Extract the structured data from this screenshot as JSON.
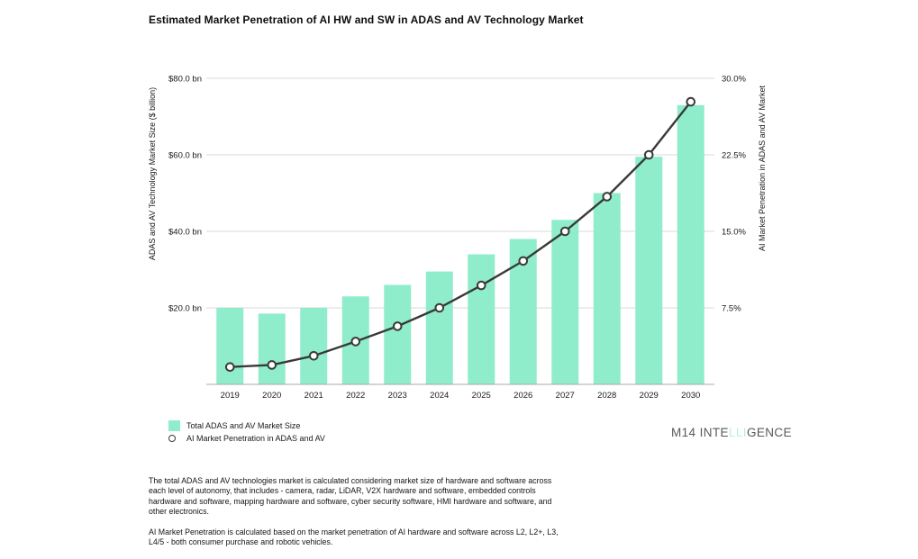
{
  "title": "Estimated Market Penetration of AI HW and SW in ADAS and AV Technology Market",
  "chart_data": {
    "type": "bar+line",
    "title": "Estimated Market Penetration of AI HW and SW in ADAS and AV Technology Market",
    "categories": [
      "2019",
      "2020",
      "2021",
      "2022",
      "2023",
      "2024",
      "2025",
      "2026",
      "2027",
      "2028",
      "2029",
      "2030"
    ],
    "series": [
      {
        "name": "Total ADAS and AV Market Size",
        "type": "bar",
        "axis": "left",
        "unit": "$ billion",
        "values": [
          20.0,
          18.5,
          20.0,
          23.0,
          26.0,
          29.5,
          34.0,
          38.0,
          43.0,
          50.0,
          59.5,
          73.0
        ],
        "color": "#8FEDCB"
      },
      {
        "name": "AI Market Penetration in ADAS and AV",
        "type": "line",
        "axis": "right",
        "unit": "%",
        "values": [
          1.7,
          1.9,
          2.8,
          4.2,
          5.7,
          7.5,
          9.7,
          12.1,
          15.0,
          18.4,
          22.5,
          27.7
        ],
        "color": "#3A3A3A",
        "marker": {
          "shape": "circle",
          "fill": "#FFFFFF",
          "stroke": "#3A3A3A"
        }
      }
    ],
    "left_axis": {
      "label": "ADAS and AV Technology Market Size ($ billion)",
      "range": [
        0,
        80
      ],
      "ticks": [
        20,
        40,
        60,
        80
      ],
      "tick_labels": [
        "$20.0 bn",
        "$40.0 bn",
        "$60.0 bn",
        "$80.0 bn"
      ]
    },
    "right_axis": {
      "label": "AI Market Penetration in ADAS and AV Market",
      "range": [
        0,
        30
      ],
      "ticks": [
        7.5,
        15,
        22.5,
        30
      ],
      "tick_labels": [
        "7.5%",
        "15.0%",
        "22.5%",
        "30.0%"
      ]
    },
    "grid": true,
    "legend_position": "bottom-left",
    "colors": {
      "gridline": "#D9D9D9",
      "baseline": "#A8A8A8",
      "bar": "#8FEDCB",
      "line": "#3A3A3A",
      "text": "#1A1A1A"
    }
  },
  "legend": {
    "items": [
      {
        "label": "Total ADAS and AV Market Size",
        "swatch": "bar-square"
      },
      {
        "label": "AI Market Penetration in ADAS and AV",
        "swatch": "line-marker"
      }
    ]
  },
  "logo": {
    "prefix": "M14 INTE",
    "highlight": "LLI",
    "suffix": "GENCE"
  },
  "footnotes": [
    "The total ADAS and AV technologies market is calculated considering market size of hardware and software across each level of autonomy, that includes - camera, radar, LiDAR, V2X hardware and software, embedded controls hardware and software, mapping hardware and software, cyber security software, HMI hardware and software, and other electronics.",
    "AI Market Penetration is calculated based on the market penetration of AI hardware and software across L2, L2+, L3, L4/5 - both consumer purchase and robotic vehicles."
  ]
}
